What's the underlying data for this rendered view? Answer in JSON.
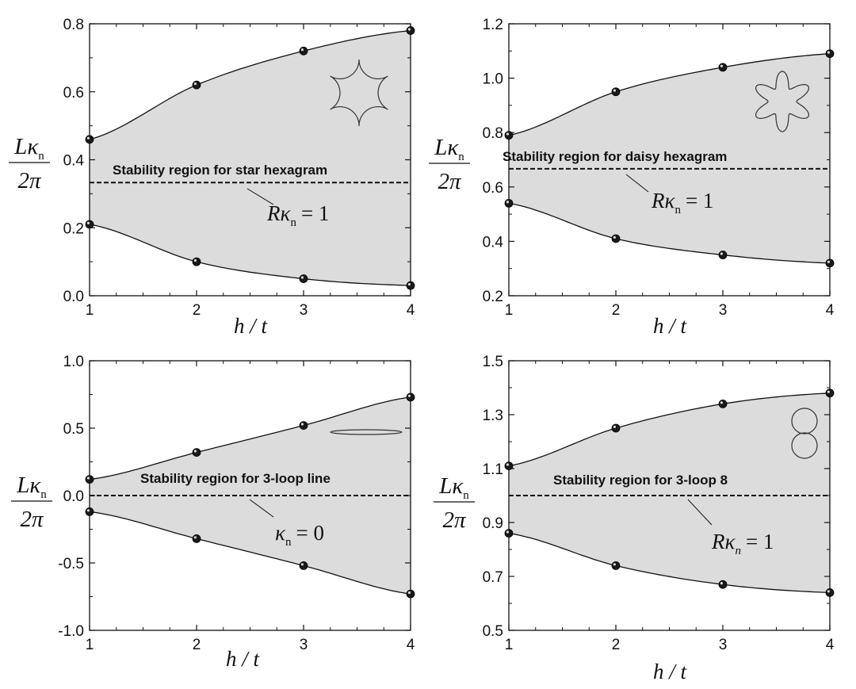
{
  "chart_data": [
    {
      "type": "area",
      "title": "",
      "xlabel": "h / t",
      "ylabel_num": "Lκ",
      "ylabel_sub": "n",
      "ylabel_den": "2π",
      "xlim": [
        1,
        4
      ],
      "ylim": [
        0.0,
        0.8
      ],
      "xticks": [
        1,
        2,
        3,
        4
      ],
      "yticks": [
        "0.0",
        "0.2",
        "0.4",
        "0.6",
        "0.8"
      ],
      "region_label": "Stability region for star hexagram",
      "reference": {
        "y": 0.333,
        "label_main": "Rκ",
        "label_sub": "n",
        "label_rhs": "= 1",
        "label_sub_italic": false
      },
      "shape_icon": "star-hexagram-icon",
      "series": [
        {
          "role": "upper",
          "x": [
            1,
            2,
            3,
            4
          ],
          "values": [
            0.46,
            0.62,
            0.72,
            0.78
          ]
        },
        {
          "role": "lower",
          "x": [
            1,
            2,
            3,
            4
          ],
          "values": [
            0.21,
            0.1,
            0.05,
            0.03
          ]
        }
      ]
    },
    {
      "type": "area",
      "title": "",
      "xlabel": "h / t",
      "ylabel_num": "Lκ",
      "ylabel_sub": "n",
      "ylabel_den": "2π",
      "xlim": [
        1,
        4
      ],
      "ylim": [
        0.2,
        1.2
      ],
      "xticks": [
        1,
        2,
        3,
        4
      ],
      "yticks": [
        "0.2",
        "0.4",
        "0.6",
        "0.8",
        "1.0",
        "1.2"
      ],
      "region_label": "Stability region for daisy hexagram",
      "reference": {
        "y": 0.667,
        "label_main": "Rκ",
        "label_sub": "n",
        "label_rhs": "= 1",
        "label_sub_italic": false
      },
      "shape_icon": "daisy-hexagram-icon",
      "series": [
        {
          "role": "upper",
          "x": [
            1,
            2,
            3,
            4
          ],
          "values": [
            0.79,
            0.95,
            1.04,
            1.09
          ]
        },
        {
          "role": "lower",
          "x": [
            1,
            2,
            3,
            4
          ],
          "values": [
            0.54,
            0.41,
            0.35,
            0.32
          ]
        }
      ]
    },
    {
      "type": "area",
      "title": "",
      "xlabel": "h / t",
      "ylabel_num": "Lκ",
      "ylabel_sub": "n",
      "ylabel_den": "2π",
      "xlim": [
        1,
        4
      ],
      "ylim": [
        -1.0,
        1.0
      ],
      "xticks": [
        1,
        2,
        3,
        4
      ],
      "yticks": [
        "-1.0",
        "-0.5",
        "0.0",
        "0.5",
        "1.0"
      ],
      "region_label": "Stability region for 3-loop line",
      "reference": {
        "y": 0.0,
        "label_main": "κ",
        "label_sub": "n",
        "label_rhs": "= 0",
        "label_sub_italic": false
      },
      "shape_icon": "loop-line-icon",
      "series": [
        {
          "role": "upper",
          "x": [
            1,
            2,
            3,
            4
          ],
          "values": [
            0.12,
            0.32,
            0.52,
            0.73
          ]
        },
        {
          "role": "lower",
          "x": [
            1,
            2,
            3,
            4
          ],
          "values": [
            -0.12,
            -0.32,
            -0.52,
            -0.73
          ]
        }
      ]
    },
    {
      "type": "area",
      "title": "",
      "xlabel": "h / t",
      "ylabel_num": "Lκ",
      "ylabel_sub": "n",
      "ylabel_den": "2π",
      "xlim": [
        1,
        4
      ],
      "ylim": [
        0.5,
        1.5
      ],
      "xticks": [
        1,
        2,
        3,
        4
      ],
      "yticks": [
        "0.5",
        "0.7",
        "0.9",
        "1.1",
        "1.3",
        "1.5"
      ],
      "region_label": "Stability region for 3-loop 8",
      "reference": {
        "y": 1.0,
        "label_main": "Rκ",
        "label_sub": "n",
        "label_rhs": "= 1",
        "label_sub_italic": true
      },
      "shape_icon": "figure-eight-icon",
      "series": [
        {
          "role": "upper",
          "x": [
            1,
            2,
            3,
            4
          ],
          "values": [
            1.11,
            1.25,
            1.34,
            1.38
          ]
        },
        {
          "role": "lower",
          "x": [
            1,
            2,
            3,
            4
          ],
          "values": [
            0.86,
            0.74,
            0.67,
            0.64
          ]
        }
      ]
    }
  ]
}
